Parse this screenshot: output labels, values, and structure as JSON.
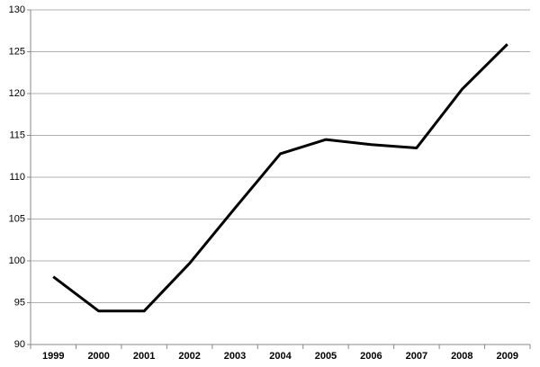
{
  "chart_data": {
    "type": "line",
    "categories": [
      "1999",
      "2000",
      "2001",
      "2002",
      "2003",
      "2004",
      "2005",
      "2006",
      "2007",
      "2008",
      "2009"
    ],
    "values": [
      98.1,
      94,
      94,
      99.7,
      106.3,
      112.8,
      114.5,
      113.9,
      113.5,
      120.5,
      125.9
    ],
    "color": "#000000",
    "ylim": [
      90,
      130
    ],
    "yticks": [
      90,
      95,
      100,
      105,
      110,
      115,
      120,
      125,
      130
    ],
    "grid": true
  }
}
